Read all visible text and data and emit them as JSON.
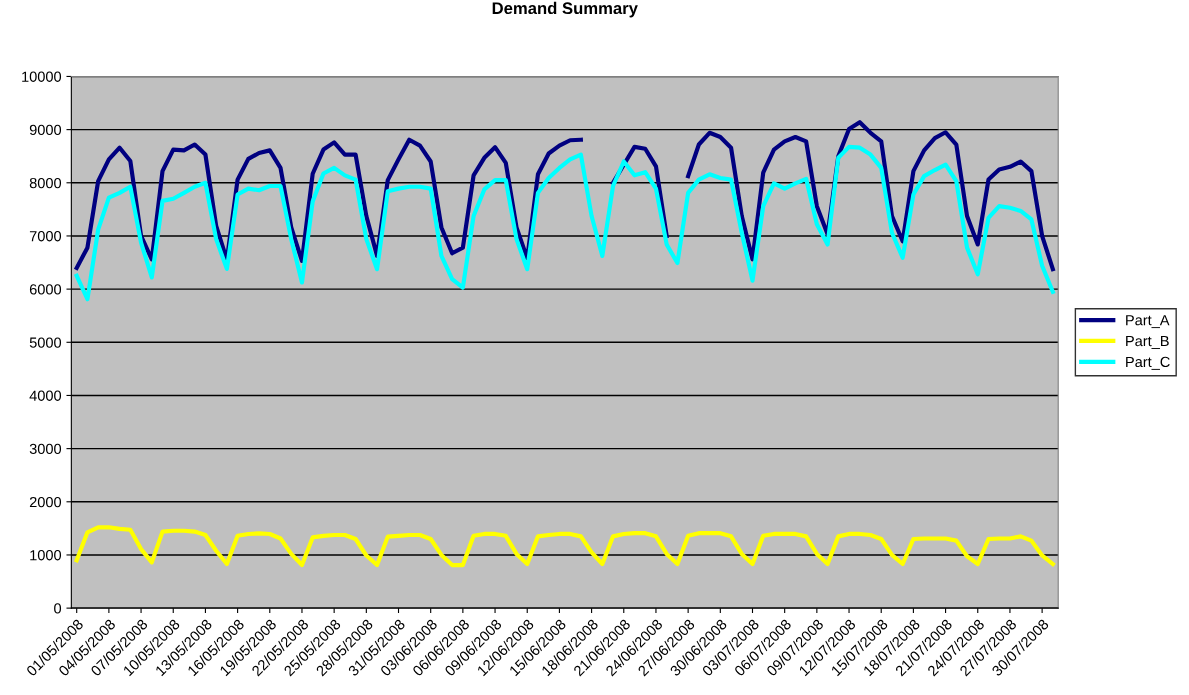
{
  "chart_data": {
    "type": "line",
    "title": "Demand Summary",
    "categories": [
      "01/05/2008",
      null,
      null,
      "04/05/2008",
      null,
      null,
      "07/05/2008",
      null,
      null,
      "10/05/2008",
      null,
      null,
      "13/05/2008",
      null,
      null,
      "16/05/2008",
      null,
      null,
      "19/05/2008",
      null,
      null,
      "22/05/2008",
      null,
      null,
      "25/05/2008",
      null,
      null,
      "28/05/2008",
      null,
      null,
      "31/05/2008",
      null,
      null,
      "03/06/2008",
      null,
      null,
      "06/06/2008",
      null,
      null,
      "09/06/2008",
      null,
      null,
      "12/06/2008",
      null,
      null,
      "15/06/2008",
      null,
      null,
      "18/06/2008",
      null,
      null,
      "21/06/2008",
      null,
      null,
      "24/06/2008",
      null,
      null,
      "27/06/2008",
      null,
      null,
      "30/06/2008",
      null,
      null,
      "03/07/2008",
      null,
      null,
      "06/07/2008",
      null,
      null,
      "09/07/2008",
      null,
      null,
      "12/07/2008",
      null,
      null,
      "15/07/2008",
      null,
      null,
      "18/07/2008",
      null,
      null,
      "21/07/2008",
      null,
      null,
      "24/07/2008",
      null,
      null,
      "27/07/2008",
      null,
      null,
      "30/07/2008",
      null
    ],
    "series": [
      {
        "name": "Part_A",
        "color": "#000080",
        "values": [
          6400,
          6780,
          8030,
          8440,
          8660,
          8410,
          7000,
          6560,
          8220,
          8625,
          8610,
          8720,
          8530,
          7190,
          6550,
          8060,
          8450,
          8560,
          8610,
          8280,
          7160,
          6530,
          8170,
          8625,
          8760,
          8530,
          8530,
          7375,
          6625,
          8050,
          8440,
          8810,
          8700,
          8400,
          7160,
          6675,
          6780,
          8140,
          8470,
          8670,
          8375,
          7160,
          6575,
          8160,
          8550,
          8700,
          8800,
          8810,
          null,
          null,
          8000,
          8340,
          8675,
          8640,
          8310,
          7000,
          null,
          8125,
          8720,
          8940,
          8860,
          8660,
          7375,
          6560,
          8190,
          8625,
          8780,
          8860,
          8780,
          7560,
          7030,
          8500,
          9010,
          9140,
          8940,
          8780,
          7375,
          6900,
          8220,
          8610,
          8840,
          8950,
          8720,
          7375,
          6840,
          8060,
          8250,
          8300,
          8400,
          8220,
          7000,
          6375
        ]
      },
      {
        "name": "Part_B",
        "color": "#ffff00",
        "values": [
          900,
          1425,
          1520,
          1520,
          1490,
          1475,
          1110,
          860,
          1440,
          1455,
          1455,
          1440,
          1375,
          1080,
          830,
          1360,
          1395,
          1405,
          1395,
          1310,
          1020,
          810,
          1330,
          1360,
          1375,
          1375,
          1300,
          990,
          810,
          1345,
          1360,
          1375,
          1375,
          1300,
          1000,
          810,
          810,
          1360,
          1395,
          1395,
          1360,
          1020,
          830,
          1350,
          1375,
          1395,
          1395,
          1350,
          1050,
          830,
          1350,
          1395,
          1410,
          1410,
          1350,
          1020,
          830,
          1360,
          1410,
          1410,
          1410,
          1350,
          1020,
          830,
          1360,
          1395,
          1395,
          1395,
          1350,
          1020,
          830,
          1350,
          1395,
          1395,
          1375,
          1300,
          1000,
          830,
          1300,
          1310,
          1310,
          1310,
          1270,
          975,
          830,
          1300,
          1310,
          1310,
          1350,
          1270,
          990,
          830
        ]
      },
      {
        "name": "Part_C",
        "color": "#00ffff",
        "values": [
          6250,
          5810,
          7120,
          7720,
          7810,
          7925,
          6875,
          6220,
          7660,
          7700,
          7810,
          7925,
          8000,
          6940,
          6380,
          7780,
          7890,
          7860,
          7940,
          7940,
          6940,
          6125,
          7650,
          8175,
          8280,
          8140,
          8060,
          6940,
          6375,
          7840,
          7890,
          7925,
          7925,
          7890,
          6625,
          6190,
          6030,
          7375,
          7875,
          8050,
          8050,
          6940,
          6375,
          7810,
          8090,
          8280,
          8440,
          8530,
          7375,
          6625,
          7940,
          8400,
          8140,
          8200,
          7890,
          6840,
          6490,
          7810,
          8060,
          8160,
          8090,
          8060,
          7060,
          6160,
          7560,
          7990,
          7890,
          7990,
          8075,
          7220,
          6840,
          8470,
          8675,
          8660,
          8530,
          8280,
          7060,
          6590,
          7780,
          8125,
          8240,
          8340,
          8030,
          6780,
          6280,
          7340,
          7560,
          7530,
          7470,
          7310,
          6440,
          5950
        ]
      }
    ],
    "ylim": [
      0,
      10000
    ],
    "yticks": [
      0,
      1000,
      2000,
      3000,
      4000,
      5000,
      6000,
      7000,
      8000,
      9000,
      10000
    ],
    "grid": "y",
    "legend": "right",
    "marker": "none",
    "line_style": "solid"
  }
}
